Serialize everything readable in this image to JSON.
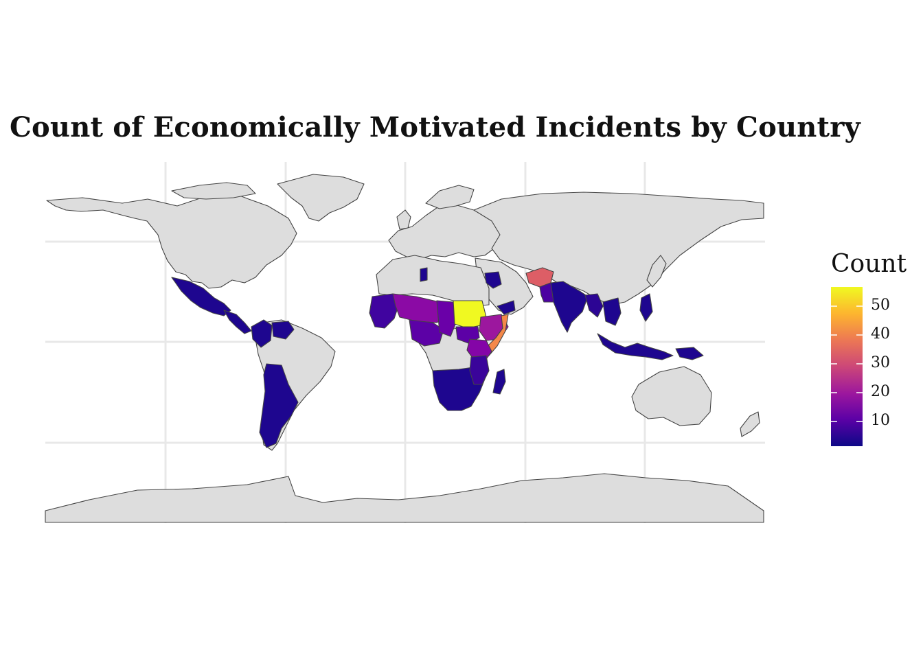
{
  "title": "Count of Economically Motivated Incidents by Country",
  "map": {
    "projection": "equirectangular",
    "basemap_fill": "#dddddd",
    "border_color": "#444444",
    "graticule": true,
    "graticule_color": "#e8e8e8"
  },
  "legend": {
    "title": "Count",
    "type": "continuous colorbar",
    "palette": "plasma",
    "range": [
      1,
      55
    ],
    "ticks": [
      {
        "value": 10,
        "label": "10"
      },
      {
        "value": 20,
        "label": "20"
      },
      {
        "value": 30,
        "label": "30"
      },
      {
        "value": 40,
        "label": "40"
      },
      {
        "value": 50,
        "label": "50"
      }
    ],
    "colors": [
      "#0d0887",
      "#5c01a6",
      "#9c179e",
      "#cc4778",
      "#ed7953",
      "#fdb42f",
      "#f0f921"
    ]
  },
  "chart_data": {
    "type": "choropleth",
    "title": "Count of Economically Motivated Incidents by Country",
    "legend_title": "Count",
    "color_scale": "plasma",
    "value_range": [
      1,
      55
    ],
    "regions": [
      {
        "name": "Sudan",
        "value": 55
      },
      {
        "name": "Somalia",
        "value": 42
      },
      {
        "name": "Afghanistan",
        "value": 33
      },
      {
        "name": "Ethiopia",
        "value": 20
      },
      {
        "name": "Nigeria",
        "value": 18
      },
      {
        "name": "Mali",
        "value": 18
      },
      {
        "name": "Niger",
        "value": 16
      },
      {
        "name": "Pakistan",
        "value": 14
      },
      {
        "name": "Kenya",
        "value": 14
      },
      {
        "name": "Chad",
        "value": 12
      },
      {
        "name": "Central African Republic",
        "value": 12
      },
      {
        "name": "Burkina Faso",
        "value": 10
      },
      {
        "name": "Cameroon",
        "value": 10
      },
      {
        "name": "South Sudan",
        "value": 10
      },
      {
        "name": "Democratic Republic of the Congo",
        "value": 8
      },
      {
        "name": "Mozambique",
        "value": 8
      },
      {
        "name": "Uganda",
        "value": 7
      },
      {
        "name": "Tanzania",
        "value": 6
      },
      {
        "name": "Yemen",
        "value": 6
      },
      {
        "name": "India",
        "value": 4
      },
      {
        "name": "Bangladesh",
        "value": 4
      },
      {
        "name": "Nepal",
        "value": 4
      },
      {
        "name": "Myanmar",
        "value": 6
      },
      {
        "name": "Mexico",
        "value": 5
      },
      {
        "name": "Colombia",
        "value": 5
      },
      {
        "name": "Venezuela",
        "value": 4
      },
      {
        "name": "Guatemala",
        "value": 3
      },
      {
        "name": "Honduras",
        "value": 3
      },
      {
        "name": "Nicaragua",
        "value": 3
      },
      {
        "name": "El Salvador",
        "value": 3
      },
      {
        "name": "Cuba",
        "value": 2
      },
      {
        "name": "Haiti",
        "value": 2
      },
      {
        "name": "Libya",
        "value": 3
      },
      {
        "name": "Iraq",
        "value": 3
      },
      {
        "name": "Guinea",
        "value": 4
      },
      {
        "name": "Sierra Leone",
        "value": 3
      },
      {
        "name": "Liberia",
        "value": 3
      },
      {
        "name": "Ivory Coast",
        "value": 4
      },
      {
        "name": "Ghana",
        "value": 3
      },
      {
        "name": "Senegal",
        "value": 3
      },
      {
        "name": "Angola",
        "value": 3
      },
      {
        "name": "Zambia",
        "value": 3
      },
      {
        "name": "Zimbabwe",
        "value": 3
      },
      {
        "name": "Malawi",
        "value": 3
      },
      {
        "name": "Namibia",
        "value": 2
      },
      {
        "name": "Botswana",
        "value": 2
      },
      {
        "name": "South Africa",
        "value": 3
      },
      {
        "name": "Madagascar",
        "value": 3
      },
      {
        "name": "Bolivia",
        "value": 3
      },
      {
        "name": "Paraguay",
        "value": 2
      },
      {
        "name": "Argentina",
        "value": 3
      },
      {
        "name": "Chile",
        "value": 2
      },
      {
        "name": "Uruguay",
        "value": 2
      },
      {
        "name": "Thailand",
        "value": 3
      },
      {
        "name": "Cambodia",
        "value": 3
      },
      {
        "name": "Vietnam",
        "value": 3
      },
      {
        "name": "Malaysia",
        "value": 3
      },
      {
        "name": "Indonesia",
        "value": 4
      },
      {
        "name": "Philippines",
        "value": 5
      },
      {
        "name": "Papua New Guinea",
        "value": 4
      }
    ]
  }
}
